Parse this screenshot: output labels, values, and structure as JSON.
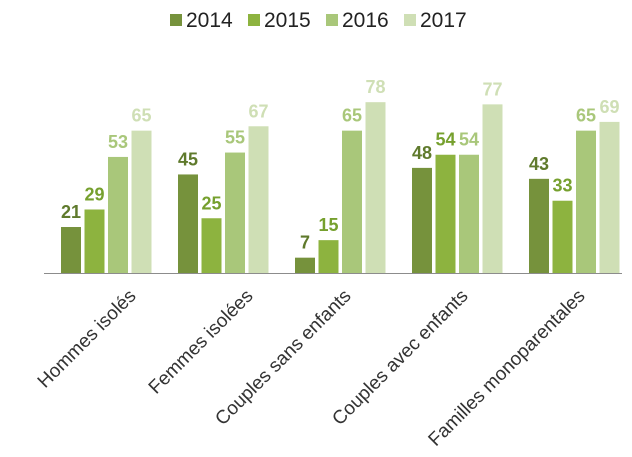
{
  "chart_data": {
    "type": "bar",
    "title": "",
    "xlabel": "",
    "ylabel": "",
    "categories": [
      "Hommes isolés",
      "Femmes isolées",
      "Couples sans enfants",
      "Couples avec enfants",
      "Familles monoparentales"
    ],
    "series": [
      {
        "name": "2014",
        "color": "#76923c",
        "values": [
          21,
          45,
          7,
          48,
          43
        ]
      },
      {
        "name": "2015",
        "color": "#8db33f",
        "values": [
          29,
          25,
          15,
          54,
          33
        ]
      },
      {
        "name": "2016",
        "color": "#a9c77a",
        "values": [
          53,
          55,
          65,
          54,
          65
        ]
      },
      {
        "name": "2017",
        "color": "#cfdfb5",
        "values": [
          65,
          67,
          78,
          77,
          69
        ]
      }
    ],
    "ylim": [
      0,
      80
    ],
    "grid": false,
    "legend_position": "top",
    "data_labels": true
  }
}
